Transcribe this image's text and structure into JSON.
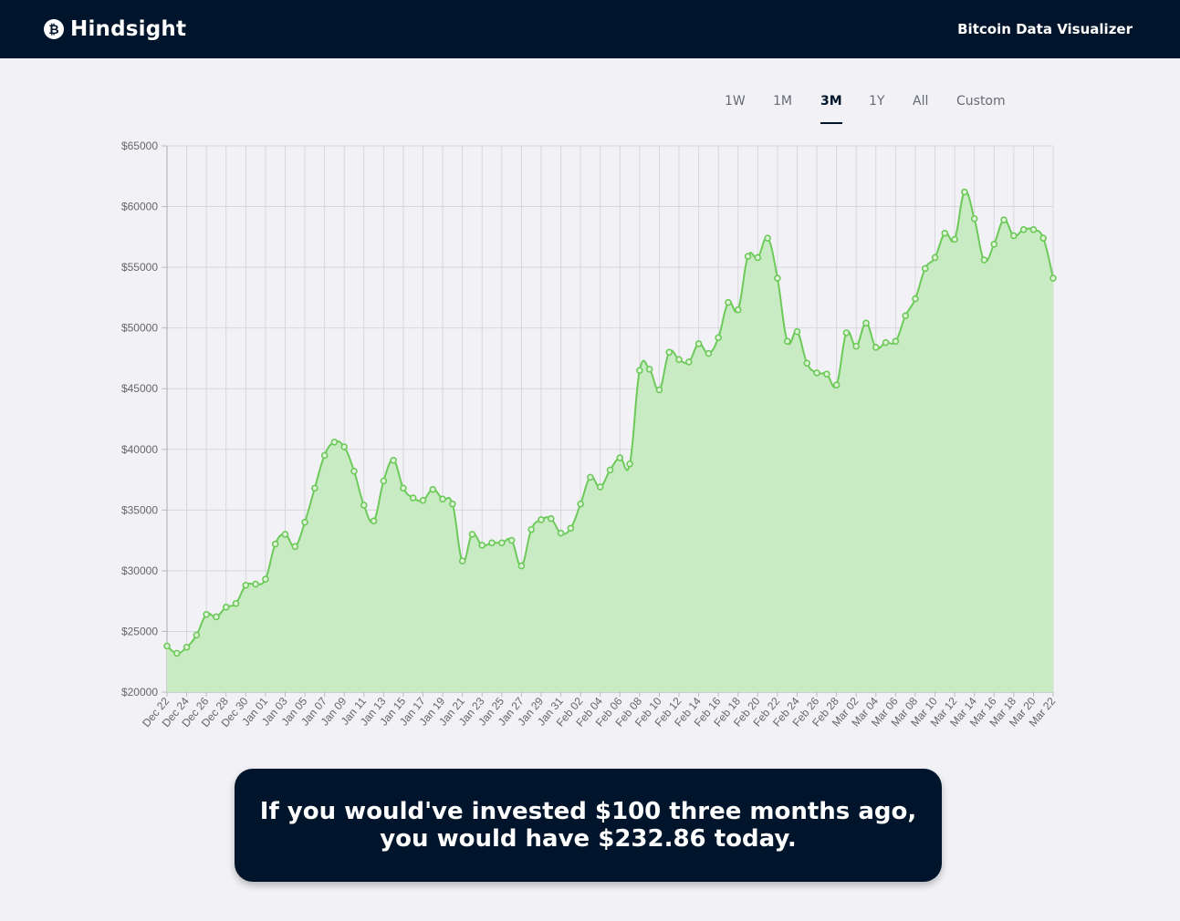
{
  "header": {
    "brand_icon": "bitcoin-icon",
    "brand_name": "Hindsight",
    "nav_right": "Bitcoin Data Visualizer"
  },
  "tabs": [
    {
      "label": "1W",
      "active": false
    },
    {
      "label": "1M",
      "active": false
    },
    {
      "label": "3M",
      "active": true
    },
    {
      "label": "1Y",
      "active": false
    },
    {
      "label": "All",
      "active": false
    },
    {
      "label": "Custom",
      "active": false
    }
  ],
  "colors": {
    "navy": "#00152b",
    "line": "#6dca5a",
    "fill": "#c9ebc3",
    "background": "#f2f2f6"
  },
  "result": {
    "text": "If you would've invested $100 three months ago, you would have $232.86 today."
  },
  "chart_data": {
    "type": "area",
    "ylim": [
      20000,
      65000
    ],
    "ytick_labels": [
      "$20000",
      "$25000",
      "$30000",
      "$35000",
      "$40000",
      "$45000",
      "$50000",
      "$55000",
      "$60000",
      "$65000"
    ],
    "xtick_labels": [
      "Dec 22",
      "Dec 24",
      "Dec 26",
      "Dec 28",
      "Dec 30",
      "Jan 01",
      "Jan 03",
      "Jan 05",
      "Jan 07",
      "Jan 09",
      "Jan 11",
      "Jan 13",
      "Jan 15",
      "Jan 17",
      "Jan 19",
      "Jan 21",
      "Jan 23",
      "Jan 25",
      "Jan 27",
      "Jan 29",
      "Jan 31",
      "Feb 02",
      "Feb 04",
      "Feb 06",
      "Feb 08",
      "Feb 10",
      "Feb 12",
      "Feb 14",
      "Feb 16",
      "Feb 18",
      "Feb 20",
      "Feb 22",
      "Feb 24",
      "Feb 26",
      "Feb 28",
      "Mar 02",
      "Mar 04",
      "Mar 06",
      "Mar 08",
      "Mar 10",
      "Mar 12",
      "Mar 14",
      "Mar 16",
      "Mar 18",
      "Mar 20",
      "Mar 22"
    ],
    "grid": true,
    "values": [
      23800,
      23200,
      23700,
      24700,
      26400,
      26200,
      27000,
      27300,
      28800,
      28900,
      29300,
      32200,
      33000,
      32000,
      34000,
      36800,
      39500,
      40600,
      40200,
      38200,
      35400,
      34100,
      37400,
      39100,
      36800,
      36000,
      35800,
      36700,
      35900,
      35500,
      30800,
      33000,
      32100,
      32300,
      32300,
      32500,
      30400,
      33400,
      34200,
      34300,
      33100,
      33500,
      35500,
      37700,
      36900,
      38300,
      39300,
      38800,
      46500,
      46600,
      44900,
      48000,
      47400,
      47200,
      48700,
      47900,
      49200,
      52100,
      51500,
      55900,
      55800,
      57400,
      54100,
      48900,
      49700,
      47100,
      46300,
      46200,
      45300,
      49600,
      48500,
      50400,
      48400,
      48800,
      48900,
      51000,
      52400,
      54900,
      55800,
      57800,
      57300,
      61200,
      59000,
      55600,
      56900,
      58900,
      57600,
      58100,
      58100,
      57400,
      54100
    ]
  }
}
